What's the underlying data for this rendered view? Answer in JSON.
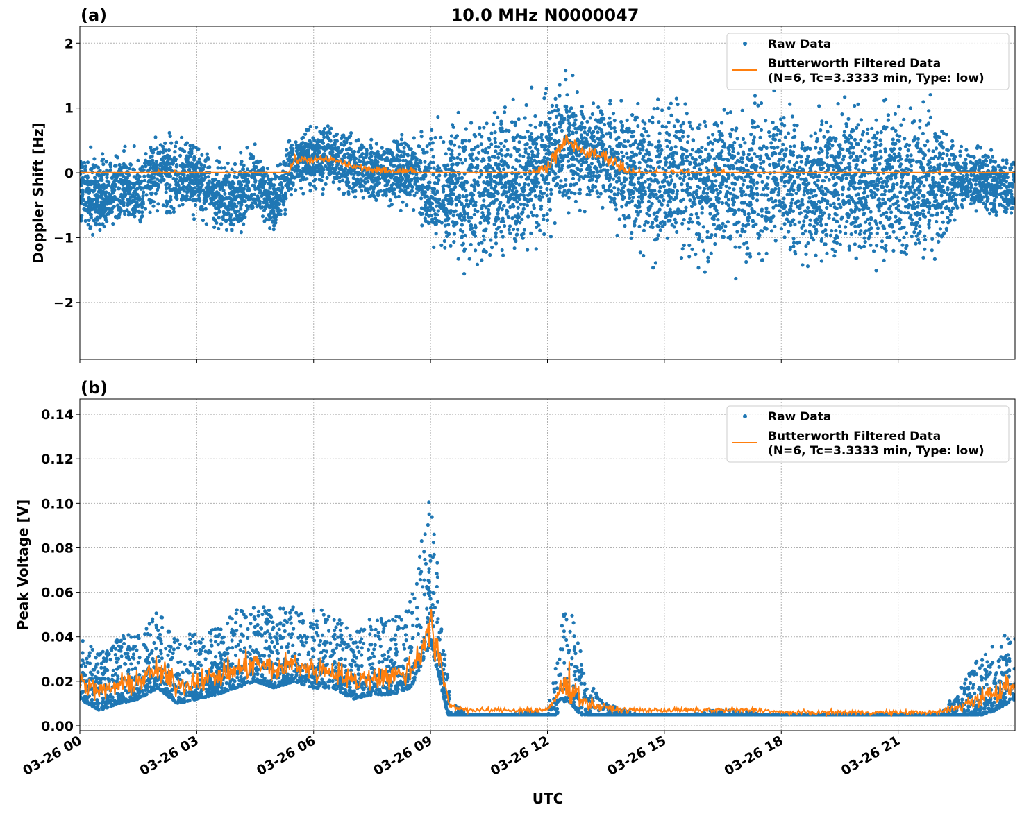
{
  "chart_data": [
    {
      "type": "scatter",
      "panel_label": "(a)",
      "title": "10.0 MHz N0000047",
      "xlabel": "",
      "ylabel": "Doppler Shift [Hz]",
      "xlim_hours": [
        0,
        24
      ],
      "ylim": [
        -2.88,
        2.26
      ],
      "yticks": [
        2,
        1,
        0,
        -1,
        -2
      ],
      "ytick_labels": [
        "2",
        "1",
        "0",
        "−1",
        "−2"
      ],
      "grid": true,
      "legend_placement": "top-right",
      "colors": {
        "raw": "#1f77b4",
        "filtered": "#ff7f0e"
      },
      "series": [
        {
          "name": "Raw Data",
          "kind": "points"
        },
        {
          "name": "Butterworth Filtered Data",
          "name_line2": "(N=6, Tc=3.3333 min, Type: low)",
          "kind": "line"
        }
      ],
      "x_hours": [
        0,
        0.5,
        1,
        1.5,
        2,
        2.5,
        3,
        3.5,
        4,
        4.5,
        5,
        5.5,
        6,
        6.5,
        7,
        7.5,
        8,
        8.5,
        9,
        9.5,
        10,
        10.5,
        11,
        11.5,
        12,
        12.5,
        13,
        13.5,
        14,
        14.5,
        15,
        15.5,
        16,
        16.5,
        17,
        17.5,
        18,
        18.5,
        19,
        19.5,
        20,
        20.5,
        21,
        21.5,
        22,
        22.5,
        23,
        23.5,
        24
      ],
      "filtered": [
        -0.2,
        -0.35,
        -0.25,
        -0.3,
        0.0,
        -0.05,
        -0.1,
        -0.35,
        -0.45,
        -0.1,
        -0.5,
        0.2,
        0.2,
        0.2,
        0.1,
        0.05,
        0.0,
        0.05,
        -0.25,
        -0.2,
        -0.35,
        -0.15,
        -0.1,
        -0.1,
        0.1,
        0.5,
        0.3,
        0.25,
        0.05,
        -0.1,
        -0.1,
        -0.05,
        -0.15,
        -0.1,
        -0.2,
        -0.15,
        -0.1,
        -0.2,
        -0.15,
        -0.1,
        -0.2,
        -0.15,
        -0.1,
        -0.2,
        -0.15,
        -0.1,
        -0.1,
        -0.2,
        -0.25
      ],
      "raw_spread": [
        0.6,
        0.6,
        0.6,
        0.6,
        0.6,
        0.6,
        0.6,
        0.6,
        0.6,
        0.6,
        0.5,
        0.5,
        0.5,
        0.5,
        0.5,
        0.5,
        0.5,
        0.5,
        0.9,
        1.0,
        1.1,
        1.1,
        1.1,
        1.1,
        1.1,
        1.0,
        0.8,
        0.8,
        1.0,
        1.2,
        1.2,
        1.2,
        1.2,
        1.2,
        1.2,
        1.2,
        1.2,
        1.2,
        1.2,
        1.2,
        1.2,
        1.2,
        1.2,
        1.2,
        1.2,
        0.6,
        0.5,
        0.5,
        0.5
      ]
    },
    {
      "type": "scatter",
      "panel_label": "(b)",
      "xlabel": "UTC",
      "ylabel": "Peak Voltage [V]",
      "xlim_hours": [
        0,
        24
      ],
      "ylim": [
        -0.0022,
        0.1469
      ],
      "yticks": [
        0.14,
        0.12,
        0.1,
        0.08,
        0.06,
        0.04,
        0.02,
        0.0
      ],
      "ytick_labels": [
        "0.14",
        "0.12",
        "0.10",
        "0.08",
        "0.06",
        "0.04",
        "0.02",
        "0.00"
      ],
      "xticks_hours": [
        0,
        3,
        6,
        9,
        12,
        15,
        18,
        21
      ],
      "xtick_labels": [
        "03-26 00",
        "03-26 03",
        "03-26 06",
        "03-26 09",
        "03-26 12",
        "03-26 15",
        "03-26 18",
        "03-26 21"
      ],
      "grid": true,
      "legend_placement": "top-right",
      "colors": {
        "raw": "#1f77b4",
        "filtered": "#ff7f0e"
      },
      "series": [
        {
          "name": "Raw Data",
          "kind": "points"
        },
        {
          "name": "Butterworth Filtered Data",
          "name_line2": "(N=6, Tc=3.3333 min, Type: low)",
          "kind": "line"
        }
      ],
      "x_hours": [
        0,
        0.5,
        1,
        1.5,
        2,
        2.5,
        3,
        3.5,
        4,
        4.5,
        5,
        5.5,
        6,
        6.5,
        7,
        7.5,
        8,
        8.5,
        9,
        9.5,
        10,
        10.5,
        11,
        11.5,
        12,
        12.5,
        13,
        13.5,
        14,
        14.5,
        15,
        15.5,
        16,
        16.5,
        17,
        17.5,
        18,
        18.5,
        19,
        19.5,
        20,
        20.5,
        21,
        21.5,
        22,
        22.5,
        23,
        23.5,
        24
      ],
      "filtered": [
        0.02,
        0.015,
        0.018,
        0.02,
        0.025,
        0.018,
        0.02,
        0.022,
        0.025,
        0.028,
        0.025,
        0.028,
        0.025,
        0.025,
        0.02,
        0.022,
        0.022,
        0.025,
        0.045,
        0.009,
        0.007,
        0.007,
        0.007,
        0.007,
        0.007,
        0.02,
        0.01,
        0.008,
        0.007,
        0.007,
        0.007,
        0.007,
        0.007,
        0.007,
        0.007,
        0.007,
        0.006,
        0.006,
        0.006,
        0.006,
        0.006,
        0.006,
        0.006,
        0.006,
        0.006,
        0.008,
        0.012,
        0.015,
        0.02
      ],
      "raw_spread": [
        0.03,
        0.025,
        0.03,
        0.03,
        0.035,
        0.03,
        0.03,
        0.03,
        0.035,
        0.035,
        0.035,
        0.035,
        0.035,
        0.035,
        0.03,
        0.035,
        0.035,
        0.04,
        0.07,
        0.01,
        0.006,
        0.006,
        0.006,
        0.008,
        0.006,
        0.05,
        0.02,
        0.01,
        0.008,
        0.006,
        0.006,
        0.006,
        0.008,
        0.008,
        0.008,
        0.006,
        0.006,
        0.006,
        0.006,
        0.006,
        0.006,
        0.006,
        0.006,
        0.006,
        0.006,
        0.015,
        0.025,
        0.03,
        0.035
      ]
    }
  ]
}
